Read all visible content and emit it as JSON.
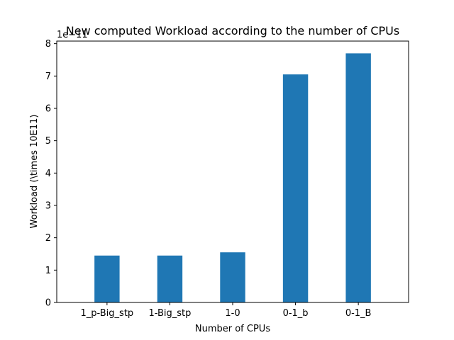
{
  "chart_data": {
    "type": "bar",
    "title": "New computed Workload according to the number of CPUs",
    "xlabel": "Number of CPUs",
    "ylabel": "Workload (\\times 10E11)",
    "y_offset_text": "1e−11",
    "categories": [
      "1_p-Big_stp",
      "1-Big_stp",
      "1-0",
      "0-1_b",
      "0-1_B"
    ],
    "values": [
      1.45,
      1.45,
      1.55,
      7.05,
      7.7
    ],
    "ylim": [
      0,
      8.08
    ],
    "yticks": [
      0,
      1,
      2,
      3,
      4,
      5,
      6,
      7,
      8
    ],
    "grid": false,
    "bar_color": "#1f77b4"
  }
}
